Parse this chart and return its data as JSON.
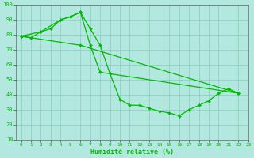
{
  "xlabel": "Humidité relative (%)",
  "background_color": "#b3e8e0",
  "grid_color": "#88ccbb",
  "line_color": "#00bb00",
  "xlim": [
    -0.5,
    23
  ],
  "ylim": [
    10,
    100
  ],
  "yticks": [
    10,
    20,
    30,
    40,
    50,
    60,
    70,
    80,
    90,
    100
  ],
  "xticks": [
    0,
    1,
    2,
    3,
    4,
    5,
    6,
    7,
    8,
    9,
    10,
    11,
    12,
    13,
    14,
    15,
    16,
    17,
    18,
    19,
    20,
    21,
    22,
    23
  ],
  "series": [
    {
      "x": [
        0,
        1,
        2,
        3,
        4,
        5,
        6,
        7,
        8,
        9,
        10,
        11,
        12,
        13,
        14,
        15,
        16,
        17,
        18,
        19,
        20,
        21,
        22
      ],
      "y": [
        79,
        78,
        82,
        84,
        90,
        92,
        95,
        84,
        73,
        54,
        37,
        33,
        33,
        31,
        29,
        28,
        26,
        30,
        33,
        36,
        41,
        44,
        41
      ]
    },
    {
      "x": [
        0,
        6,
        22
      ],
      "y": [
        79,
        73,
        41
      ]
    },
    {
      "x": [
        0,
        2,
        4,
        5,
        6,
        7,
        8,
        22
      ],
      "y": [
        79,
        82,
        90,
        92,
        95,
        73,
        55,
        41
      ]
    }
  ]
}
